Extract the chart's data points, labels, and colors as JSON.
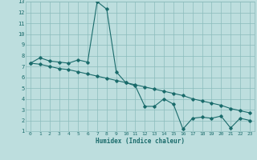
{
  "xlabel": "Humidex (Indice chaleur)",
  "bg_color": "#bddede",
  "grid_color": "#8bbcbc",
  "line_color": "#1a6b6b",
  "xlim": [
    -0.5,
    23.5
  ],
  "ylim": [
    1,
    13
  ],
  "xticks": [
    0,
    1,
    2,
    3,
    4,
    5,
    6,
    7,
    8,
    9,
    10,
    11,
    12,
    13,
    14,
    15,
    16,
    17,
    18,
    19,
    20,
    21,
    22,
    23
  ],
  "yticks": [
    1,
    2,
    3,
    4,
    5,
    6,
    7,
    8,
    9,
    10,
    11,
    12,
    13
  ],
  "line1_x": [
    0,
    1,
    2,
    3,
    4,
    5,
    6,
    7,
    8,
    9,
    10,
    11,
    12,
    13,
    14,
    15,
    16,
    17,
    18,
    19,
    20,
    21,
    22,
    23
  ],
  "line1_y": [
    7.3,
    7.8,
    7.5,
    7.4,
    7.3,
    7.6,
    7.4,
    13.0,
    12.3,
    6.5,
    5.5,
    5.2,
    3.3,
    3.3,
    4.0,
    3.5,
    1.2,
    2.2,
    2.3,
    2.2,
    2.4,
    1.3,
    2.2,
    2.0
  ],
  "line2_x": [
    0,
    1,
    2,
    3,
    4,
    5,
    6,
    7,
    8,
    9,
    10,
    11,
    12,
    13,
    14,
    15,
    16,
    17,
    18,
    19,
    20,
    21,
    22,
    23
  ],
  "line2_y": [
    7.3,
    7.2,
    7.0,
    6.8,
    6.7,
    6.5,
    6.3,
    6.1,
    5.9,
    5.7,
    5.5,
    5.3,
    5.1,
    4.9,
    4.7,
    4.5,
    4.3,
    4.0,
    3.8,
    3.6,
    3.4,
    3.1,
    2.9,
    2.7
  ]
}
